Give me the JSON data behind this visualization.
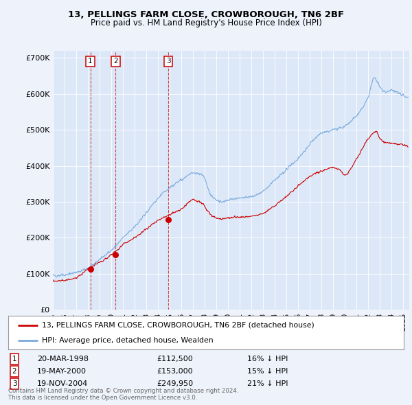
{
  "title": "13, PELLINGS FARM CLOSE, CROWBOROUGH, TN6 2BF",
  "subtitle": "Price paid vs. HM Land Registry's House Price Index (HPI)",
  "background_color": "#eef2fb",
  "plot_bg_color": "#dce8f8",
  "legend_label_red": "13, PELLINGS FARM CLOSE, CROWBOROUGH, TN6 2BF (detached house)",
  "legend_label_blue": "HPI: Average price, detached house, Wealden",
  "red_color": "#cc0000",
  "blue_color": "#7aaadd",
  "footer_text": "Contains HM Land Registry data © Crown copyright and database right 2024.\nThis data is licensed under the Open Government Licence v3.0.",
  "sale_points": [
    {
      "label": "1",
      "date_x": 1998.22,
      "price": 112500
    },
    {
      "label": "2",
      "date_x": 2000.38,
      "price": 153000
    },
    {
      "label": "3",
      "date_x": 2004.9,
      "price": 249950
    }
  ],
  "sale_table": [
    {
      "num": "1",
      "date": "20-MAR-1998",
      "price": "£112,500",
      "hpi": "16% ↓ HPI"
    },
    {
      "num": "2",
      "date": "19-MAY-2000",
      "price": "£153,000",
      "hpi": "15% ↓ HPI"
    },
    {
      "num": "3",
      "date": "19-NOV-2004",
      "price": "£249,950",
      "hpi": "21% ↓ HPI"
    }
  ],
  "xmin": 1995.0,
  "xmax": 2025.5,
  "ymin": 0,
  "ymax": 720000,
  "yticks": [
    0,
    100000,
    200000,
    300000,
    400000,
    500000,
    600000,
    700000
  ],
  "ytick_labels": [
    "£0",
    "£100K",
    "£200K",
    "£300K",
    "£400K",
    "£500K",
    "£600K",
    "£700K"
  ]
}
